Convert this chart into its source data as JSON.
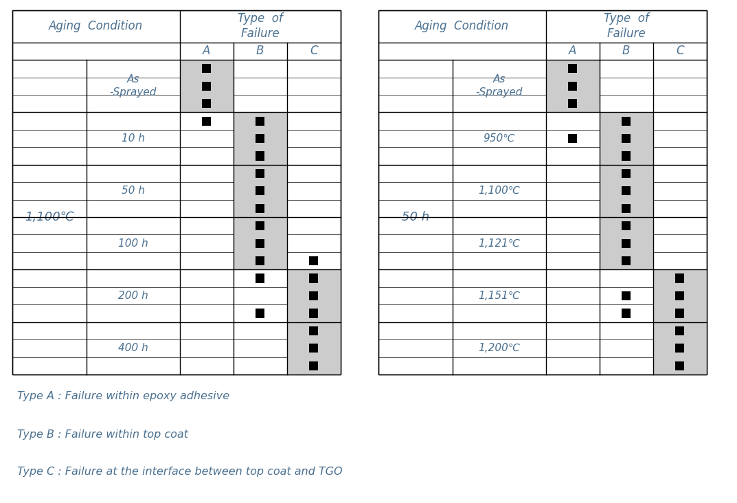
{
  "bg_color": "#ffffff",
  "table_line_color": "#000000",
  "blue": "#4a7090",
  "gray_bg": "#cccccc",
  "legend": [
    "Type A : Failure within epoxy adhesive",
    "Type B : Failure within top coat",
    "Type C : Failure at the interface between top coat and TGO"
  ],
  "left_table": {
    "main_row_label": "1,100℃",
    "sub_labels": [
      "As\n-Sprayed",
      "10 h",
      "50 h",
      "100 h",
      "200 h",
      "400 h"
    ],
    "data": [
      [
        1,
        0,
        0,
        1,
        0,
        0
      ],
      [
        1,
        0,
        0,
        1,
        0,
        0
      ],
      [
        1,
        0,
        0,
        1,
        0,
        0
      ],
      [
        1,
        1,
        0,
        0,
        1,
        0
      ],
      [
        0,
        1,
        0,
        0,
        1,
        0
      ],
      [
        0,
        1,
        0,
        0,
        1,
        0
      ],
      [
        0,
        1,
        0,
        0,
        1,
        0
      ],
      [
        0,
        1,
        0,
        0,
        1,
        0
      ],
      [
        0,
        1,
        0,
        0,
        1,
        0
      ],
      [
        0,
        1,
        0,
        0,
        1,
        0
      ],
      [
        0,
        1,
        0,
        0,
        1,
        0
      ],
      [
        0,
        1,
        1,
        0,
        1,
        0
      ],
      [
        0,
        1,
        1,
        0,
        0,
        1
      ],
      [
        0,
        0,
        1,
        0,
        0,
        1
      ],
      [
        0,
        1,
        1,
        0,
        0,
        1
      ],
      [
        0,
        0,
        1,
        0,
        0,
        1
      ],
      [
        0,
        0,
        1,
        0,
        0,
        1
      ],
      [
        0,
        0,
        1,
        0,
        0,
        1
      ]
    ]
  },
  "right_table": {
    "main_row_label": "50 h",
    "sub_labels": [
      "As\n-Sprayed",
      "950℃",
      "1,100℃",
      "1,121℃",
      "1,151℃",
      "1,200℃"
    ],
    "data": [
      [
        1,
        0,
        0,
        1,
        0,
        0
      ],
      [
        1,
        0,
        0,
        1,
        0,
        0
      ],
      [
        1,
        0,
        0,
        1,
        0,
        0
      ],
      [
        0,
        1,
        0,
        0,
        1,
        0
      ],
      [
        1,
        1,
        0,
        0,
        1,
        0
      ],
      [
        0,
        1,
        0,
        0,
        1,
        0
      ],
      [
        0,
        1,
        0,
        0,
        1,
        0
      ],
      [
        0,
        1,
        0,
        0,
        1,
        0
      ],
      [
        0,
        1,
        0,
        0,
        1,
        0
      ],
      [
        0,
        1,
        0,
        0,
        1,
        0
      ],
      [
        0,
        1,
        0,
        0,
        1,
        0
      ],
      [
        0,
        1,
        0,
        0,
        1,
        0
      ],
      [
        0,
        0,
        1,
        0,
        0,
        1
      ],
      [
        0,
        1,
        1,
        0,
        0,
        1
      ],
      [
        0,
        1,
        1,
        0,
        0,
        1
      ],
      [
        0,
        0,
        1,
        0,
        0,
        1
      ],
      [
        0,
        0,
        1,
        0,
        0,
        1
      ],
      [
        0,
        0,
        1,
        0,
        0,
        1
      ]
    ]
  }
}
